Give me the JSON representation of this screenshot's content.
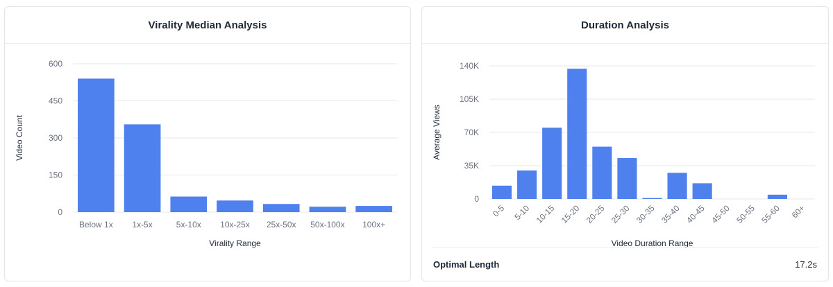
{
  "charts": [
    {
      "title": "Virality Median Analysis",
      "chart_data": {
        "type": "bar",
        "categories": [
          "Below 1x",
          "1x-5x",
          "5x-10x",
          "10x-25x",
          "25x-50x",
          "50x-100x",
          "100x+"
        ],
        "values": [
          540,
          355,
          63,
          47,
          33,
          22,
          25
        ],
        "yticks": [
          "0",
          "150",
          "300",
          "450",
          "600"
        ],
        "ylim": [
          0,
          600
        ],
        "xlabel": "Virality Range",
        "ylabel": "Video Count",
        "color": "#4f81ee",
        "grid": true
      }
    },
    {
      "title": "Duration Analysis",
      "chart_data": {
        "type": "bar",
        "categories": [
          "0-5",
          "5-10",
          "10-15",
          "15-20",
          "20-25",
          "25-30",
          "30-35",
          "35-40",
          "40-45",
          "45-50",
          "50-55",
          "55-60",
          "60+"
        ],
        "values": [
          14000,
          30000,
          75000,
          137000,
          55000,
          43000,
          1000,
          27500,
          16500,
          0,
          0,
          4500,
          0
        ],
        "yticks": [
          "0",
          "35K",
          "70K",
          "105K",
          "140K"
        ],
        "ylim": [
          0,
          140000
        ],
        "xlabel": "Video Duration Range",
        "ylabel": "Average Views",
        "color": "#4f81ee",
        "grid": true
      },
      "footer": {
        "label": "Optimal Length",
        "value": "17.2s"
      }
    }
  ]
}
